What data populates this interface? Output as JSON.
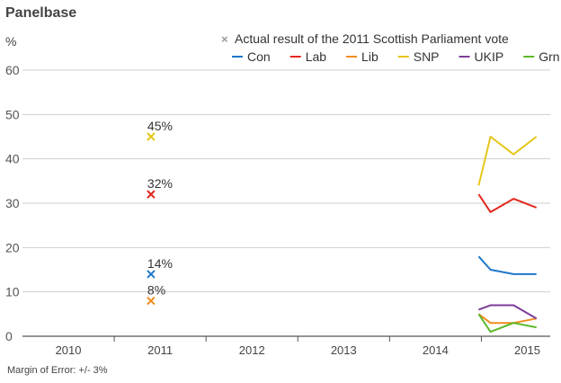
{
  "chart_data": {
    "type": "line",
    "title": "Panelbase",
    "ylabel": "%",
    "ylim": [
      0,
      60
    ],
    "yticks": [
      "0",
      "10",
      "20",
      "30",
      "40",
      "50",
      "60"
    ],
    "grid": true,
    "x_range": [
      2009.5,
      2015.25
    ],
    "x_tick_labels": [
      "2010",
      "2011",
      "2012",
      "2013",
      "2014",
      "2015"
    ],
    "x_tick_values": [
      2010,
      2011,
      2012,
      2013,
      2014,
      2015
    ],
    "x_dividers": [
      2010.5,
      2011.5,
      2012.5,
      2013.5,
      2014.5
    ],
    "footnote": "Margin of Error: +/- 3%",
    "legend_marker_label": "Actual result of the 2011 Scottish Parliament vote",
    "legend_position": "top-right",
    "series": [
      {
        "name": "Con",
        "color": "#1f77c9",
        "x": [
          2014.47,
          2014.6,
          2014.85,
          2015.1
        ],
        "values": [
          18,
          15,
          14,
          14
        ]
      },
      {
        "name": "Lab",
        "color": "#e3281e",
        "x": [
          2014.47,
          2014.6,
          2014.85,
          2015.1
        ],
        "values": [
          32,
          28,
          31,
          29
        ]
      },
      {
        "name": "Lib",
        "color": "#f28c1e",
        "x": [
          2014.47,
          2014.6,
          2014.85,
          2015.1
        ],
        "values": [
          5,
          3,
          3,
          4
        ]
      },
      {
        "name": "SNP",
        "color": "#e6c619",
        "x": [
          2014.47,
          2014.6,
          2014.85,
          2015.1
        ],
        "values": [
          34,
          45,
          41,
          45
        ]
      },
      {
        "name": "UKIP",
        "color": "#7d3c98",
        "x": [
          2014.47,
          2014.6,
          2014.85,
          2015.1
        ],
        "values": [
          6,
          7,
          7,
          4
        ]
      },
      {
        "name": "Grn",
        "color": "#5cb829",
        "x": [
          2014.47,
          2014.6,
          2014.85,
          2015.1
        ],
        "values": [
          5,
          1,
          3,
          2
        ]
      }
    ],
    "actual_results_2011": [
      {
        "party": "SNP",
        "color": "#e6c619",
        "x": 2010.9,
        "value": 45,
        "label": "45%"
      },
      {
        "party": "Lab",
        "color": "#e3281e",
        "x": 2010.9,
        "value": 32,
        "label": "32%"
      },
      {
        "party": "Con",
        "color": "#1f77c9",
        "x": 2010.9,
        "value": 14,
        "label": "14%"
      },
      {
        "party": "Lib",
        "color": "#f28c1e",
        "x": 2010.9,
        "value": 8,
        "label": "8%"
      }
    ]
  }
}
